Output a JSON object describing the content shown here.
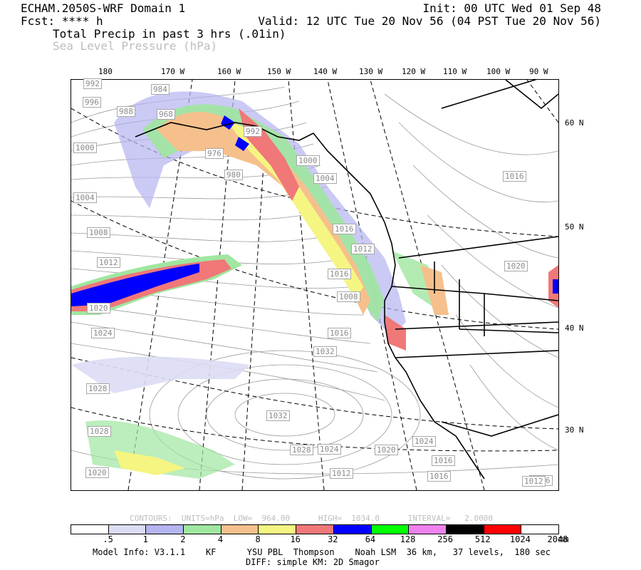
{
  "header": {
    "model": "ECHAM.2050S-WRF Domain 1",
    "init": "Init: 00 UTC Wed 01 Sep 48",
    "fcst": "Fcst: **** h",
    "valid": "Valid: 12 UTC Tue 20 Nov 56 (04 PST Tue 20 Nov 56)",
    "field1": "Total Precip in past 3 hrs (.01in)",
    "field2": "Sea Level Pressure (hPa)"
  },
  "longitude_labels": [
    "180",
    "170 W",
    "160 W",
    "150 W",
    "140 W",
    "130 W",
    "120 W",
    "110 W",
    "100 W",
    "90 W"
  ],
  "latitude_labels": [
    "60 N",
    "50 N",
    "40 N",
    "30 N"
  ],
  "isobar_labels": [
    "992",
    "984",
    "996",
    "988",
    "968",
    "992",
    "1000",
    "976",
    "980",
    "1004",
    "1000",
    "1004",
    "1008",
    "1012",
    "1016",
    "1012",
    "1016",
    "1020",
    "1016",
    "1032",
    "1024",
    "1028",
    "1028",
    "1032",
    "1028",
    "1024",
    "1020",
    "1024",
    "1016",
    "1016",
    "1012",
    "1020",
    "1016",
    "1020",
    "1016",
    "1008",
    "1012"
  ],
  "contour_info": "CONTOURS:  UNITS=hPa  LOW=  964.00      HIGH=  1034.0      INTERVAL=   2.0000",
  "colorbar": {
    "labels": [
      ".5",
      "1",
      "2",
      "4",
      "8",
      "16",
      "32",
      "64",
      "128",
      "256",
      "512",
      "1024",
      "2048"
    ],
    "unit": "mm",
    "colors": [
      "#ffffff",
      "#dcdcf5",
      "#b4b4f0",
      "#a0e6a0",
      "#f5c08c",
      "#f5f582",
      "#f07878",
      "#0000ff",
      "#00ff00",
      "#f082f0",
      "#000000",
      "#ff0000",
      "#ffffff"
    ]
  },
  "footer": {
    "line1": "Model Info: V3.1.1    KF      YSU PBL  Thompson    Noah LSM  36 km,   37 levels,  180 sec",
    "line2": "DIFF: simple KM: 2D Smagor"
  }
}
